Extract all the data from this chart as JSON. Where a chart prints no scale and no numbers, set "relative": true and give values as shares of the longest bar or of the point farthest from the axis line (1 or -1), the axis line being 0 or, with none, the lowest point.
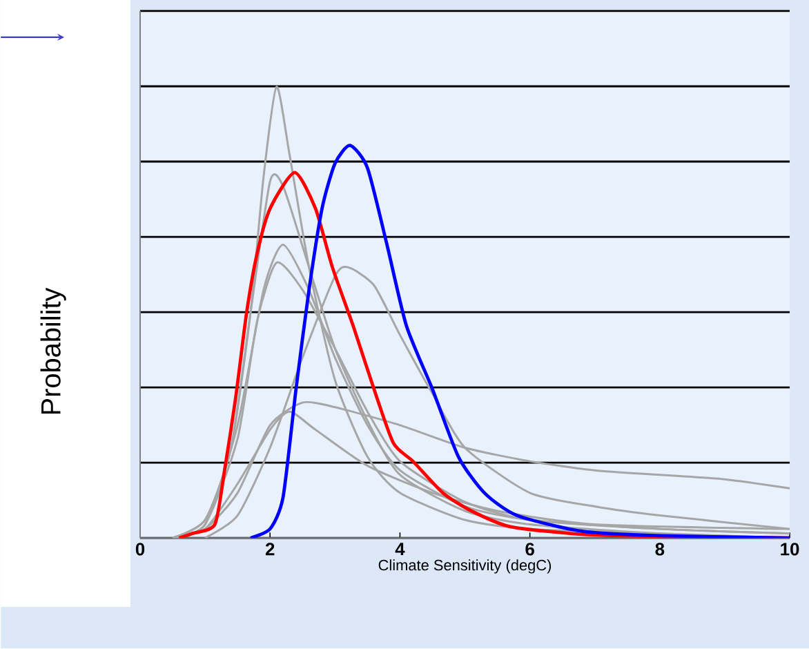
{
  "chart_data": {
    "type": "line",
    "relative": true,
    "ylabel": "Probability",
    "xlabel": "Climate Sensitivity (degC)",
    "xlim": [
      0,
      10
    ],
    "xticks": [
      0,
      2,
      4,
      6,
      8,
      10
    ],
    "grid": "y",
    "series": [
      {
        "color": "#a6a6a6",
        "x": [
          0.5,
          1.0,
          1.4,
          1.7,
          1.9,
          2.1,
          2.3,
          2.6,
          3.0,
          3.5,
          4.0,
          5.0,
          6.0,
          8.0,
          10.0
        ],
        "values": [
          0,
          0.04,
          0.2,
          0.5,
          0.8,
          1.0,
          0.85,
          0.6,
          0.35,
          0.18,
          0.1,
          0.04,
          0.02,
          0.01,
          0
        ]
      },
      {
        "color": "#a6a6a6",
        "x": [
          0.5,
          1.0,
          1.4,
          1.7,
          2.0,
          2.2,
          2.6,
          3.0,
          3.5,
          4.0,
          5.0,
          6.0,
          8.0,
          10.0
        ],
        "values": [
          0,
          0.04,
          0.2,
          0.5,
          0.79,
          0.78,
          0.6,
          0.42,
          0.26,
          0.14,
          0.06,
          0.03,
          0.01,
          0
        ]
      },
      {
        "color": "#a6a6a6",
        "x": [
          0.5,
          1.0,
          1.5,
          1.9,
          2.2,
          2.6,
          3.0,
          3.5,
          4.0,
          5.0,
          6.0,
          8.0,
          10.0
        ],
        "values": [
          0,
          0.03,
          0.25,
          0.55,
          0.65,
          0.55,
          0.4,
          0.25,
          0.15,
          0.07,
          0.04,
          0.02,
          0.01
        ]
      },
      {
        "color": "#a6a6a6",
        "x": [
          0.5,
          1.0,
          1.5,
          1.8,
          2.1,
          2.5,
          3.0,
          3.5,
          4.0,
          5.0,
          6.0,
          8.0,
          10.0
        ],
        "values": [
          0,
          0.03,
          0.22,
          0.48,
          0.61,
          0.55,
          0.42,
          0.28,
          0.17,
          0.08,
          0.04,
          0.02,
          0.01
        ]
      },
      {
        "color": "#a6a6a6",
        "x": [
          1.0,
          1.5,
          2.0,
          2.5,
          3.0,
          3.2,
          3.6,
          4.0,
          4.5,
          5.0,
          6.0,
          7.0,
          8.0,
          10.0
        ],
        "values": [
          0,
          0.05,
          0.2,
          0.4,
          0.58,
          0.6,
          0.56,
          0.45,
          0.32,
          0.2,
          0.1,
          0.07,
          0.05,
          0.02
        ]
      },
      {
        "color": "#a6a6a6",
        "x": [
          0.5,
          1.0,
          1.5,
          2.0,
          2.5,
          3.0,
          4.0,
          5.0,
          6.0,
          7.0,
          8.0,
          9.0,
          10.0
        ],
        "values": [
          0,
          0.02,
          0.1,
          0.25,
          0.3,
          0.29,
          0.25,
          0.2,
          0.17,
          0.15,
          0.14,
          0.13,
          0.11
        ]
      },
      {
        "color": "#a6a6a6",
        "x": [
          0.5,
          1.0,
          1.5,
          2.0,
          2.3,
          2.7,
          3.5,
          4.5,
          5.5,
          7.0,
          10.0
        ],
        "values": [
          0,
          0.02,
          0.12,
          0.24,
          0.28,
          0.24,
          0.16,
          0.1,
          0.06,
          0.03,
          0.02
        ]
      },
      {
        "color": "#ff0000",
        "x": [
          0.6,
          0.8,
          1.15,
          1.3,
          1.47,
          1.64,
          1.8,
          2.0,
          2.38,
          2.7,
          2.96,
          3.28,
          3.6,
          3.9,
          4.2,
          4.66,
          5.1,
          5.7,
          6.8,
          8.0,
          10.0
        ],
        "values": [
          0,
          0.01,
          0.03,
          0.15,
          0.31,
          0.5,
          0.63,
          0.73,
          0.81,
          0.73,
          0.6,
          0.47,
          0.33,
          0.21,
          0.17,
          0.1,
          0.06,
          0.025,
          0.008,
          0.003,
          0
        ]
      },
      {
        "color": "#0000ff",
        "x": [
          1.7,
          2.0,
          2.2,
          2.4,
          2.6,
          2.8,
          3.0,
          3.23,
          3.5,
          3.8,
          4.1,
          4.5,
          4.9,
          5.3,
          5.8,
          6.8,
          8.0,
          10.0
        ],
        "values": [
          0,
          0.02,
          0.09,
          0.33,
          0.55,
          0.73,
          0.83,
          0.87,
          0.82,
          0.65,
          0.47,
          0.33,
          0.18,
          0.1,
          0.05,
          0.015,
          0.005,
          0
        ]
      }
    ]
  }
}
